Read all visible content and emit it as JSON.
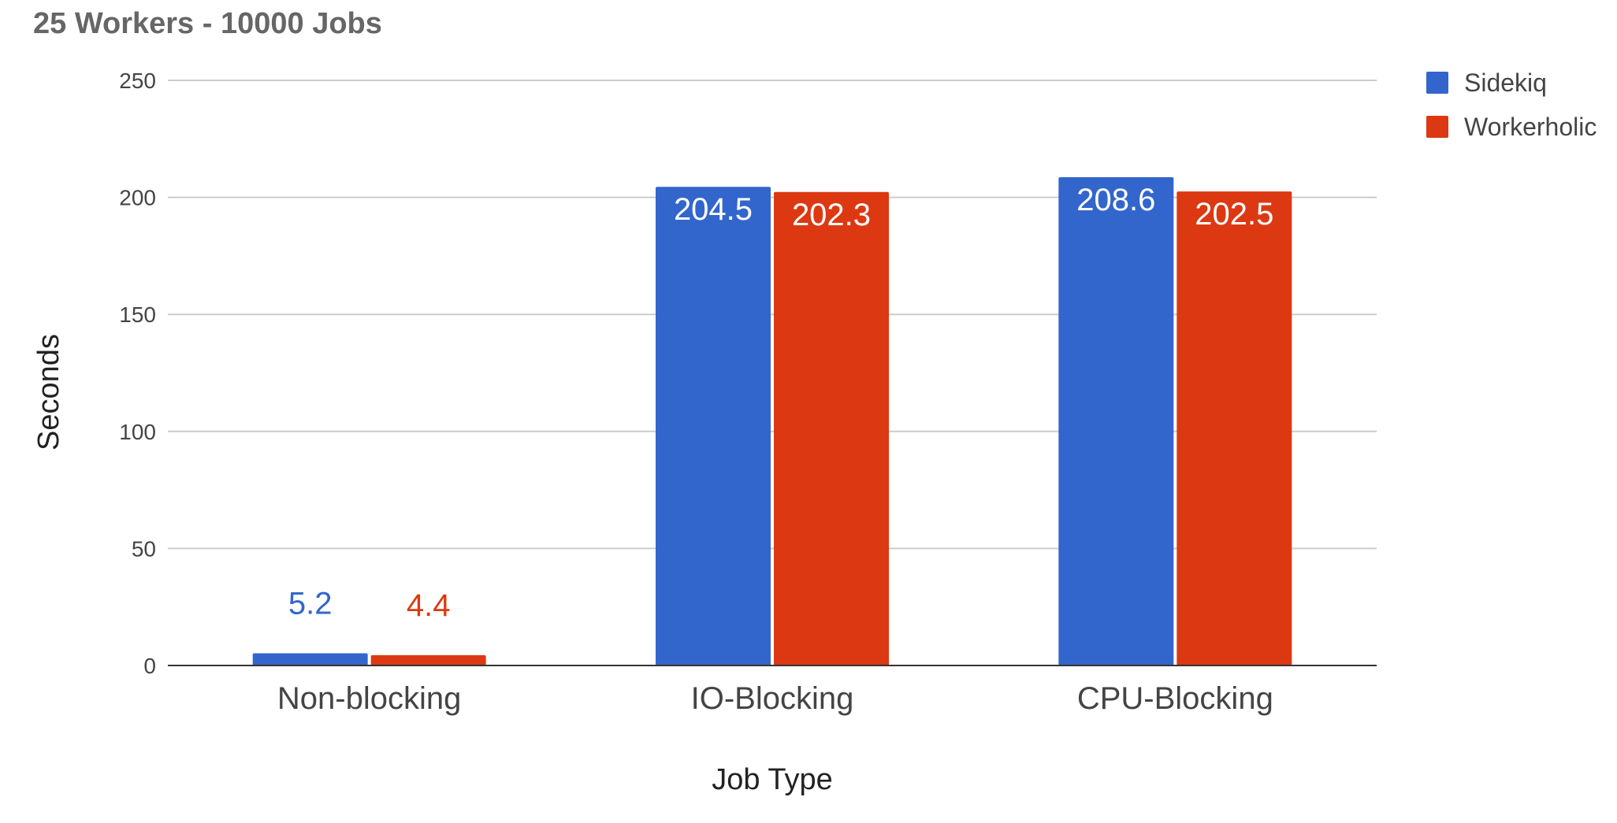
{
  "chart_data": {
    "type": "bar",
    "title": "25 Workers - 10000 Jobs",
    "xlabel": "Job Type",
    "ylabel": "Seconds",
    "categories": [
      "Non-blocking",
      "IO-Blocking",
      "CPU-Blocking"
    ],
    "series": [
      {
        "name": "Sidekiq",
        "color": "#3366CC",
        "values": [
          5.2,
          204.5,
          208.6
        ]
      },
      {
        "name": "Workerholic",
        "color": "#DC3912",
        "values": [
          4.4,
          202.3,
          202.5
        ]
      }
    ],
    "ylim": [
      0,
      250
    ],
    "yticks": [
      0,
      50,
      100,
      150,
      200,
      250
    ],
    "grid": true,
    "legend_position": "top-right",
    "data_labels": true
  }
}
